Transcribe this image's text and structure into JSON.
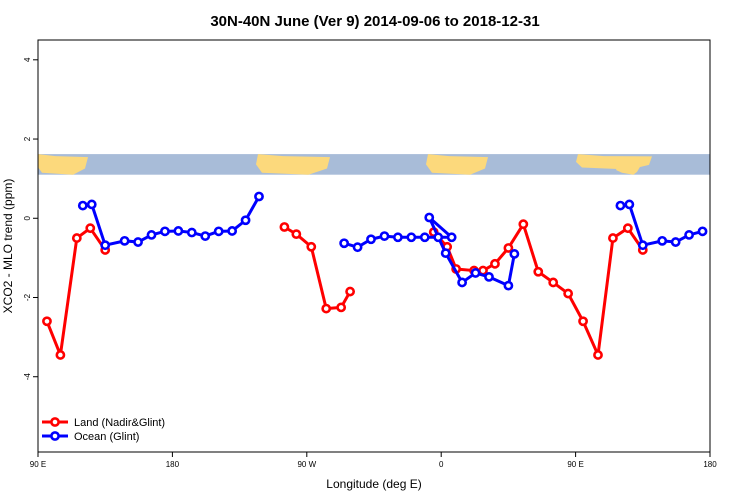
{
  "chart_data": {
    "type": "line",
    "title": "30N-40N June (Ver 9)   2014-09-06 to 2018-12-31",
    "xlabel": "Longitude (deg E)",
    "ylabel": "XCO2 - MLO trend (ppm)",
    "xlim": [
      90,
      540
    ],
    "ylim": [
      -5.9,
      4.5
    ],
    "x_ticks": [
      90,
      180,
      270,
      360,
      450,
      540
    ],
    "x_tick_labels": [
      "90 E",
      "180",
      "90 W",
      "0",
      "90 E",
      "180"
    ],
    "y_ticks": [
      -4,
      -2,
      0,
      2,
      4
    ],
    "y_tick_labels": [
      "-4",
      "-2",
      "0",
      "2",
      "4"
    ],
    "grid": false,
    "legend_position": "bottom-left",
    "map_strip": {
      "ymin": 1.1,
      "ymax": 1.62,
      "ocean_color": "#a8bcd8",
      "land_color": "#fcd97c"
    },
    "series": [
      {
        "name": "Land (Nadir&Glint)",
        "color": "#ff0000",
        "segments": [
          [
            [
              96,
              -2.6
            ],
            [
              105,
              -3.45
            ],
            [
              116,
              -0.5
            ],
            [
              125,
              -0.25
            ],
            [
              135,
              -0.8
            ]
          ],
          [
            [
              255,
              -0.22
            ],
            [
              263,
              -0.4
            ],
            [
              273,
              -0.72
            ],
            [
              283,
              -2.28
            ],
            [
              293,
              -2.25
            ],
            [
              299,
              -1.85
            ]
          ],
          [
            [
              355,
              -0.35
            ],
            [
              364,
              -0.72
            ],
            [
              370,
              -1.28
            ],
            [
              382,
              -1.32
            ],
            [
              388,
              -1.32
            ],
            [
              396,
              -1.15
            ],
            [
              405,
              -0.75
            ],
            [
              415,
              -0.15
            ],
            [
              425,
              -1.35
            ],
            [
              435,
              -1.62
            ],
            [
              445,
              -1.9
            ],
            [
              455,
              -2.6
            ],
            [
              465,
              -3.45
            ],
            [
              475,
              -0.5
            ],
            [
              485,
              -0.25
            ],
            [
              495,
              -0.8
            ]
          ]
        ]
      },
      {
        "name": "Ocean (Glint)",
        "color": "#0000ff",
        "segments": [
          [
            [
              120,
              0.32
            ],
            [
              126,
              0.35
            ],
            [
              135,
              -0.68
            ],
            [
              148,
              -0.57
            ],
            [
              157,
              -0.6
            ],
            [
              166,
              -0.42
            ],
            [
              175,
              -0.33
            ],
            [
              184,
              -0.32
            ],
            [
              193,
              -0.36
            ],
            [
              202,
              -0.45
            ],
            [
              211,
              -0.33
            ],
            [
              220,
              -0.32
            ],
            [
              229,
              -0.05
            ],
            [
              238,
              0.55
            ]
          ],
          [
            [
              295,
              -0.63
            ],
            [
              304,
              -0.73
            ],
            [
              313,
              -0.53
            ],
            [
              322,
              -0.45
            ],
            [
              331,
              -0.48
            ],
            [
              340,
              -0.48
            ],
            [
              349,
              -0.48
            ],
            [
              358,
              -0.48
            ],
            [
              367,
              -0.48
            ],
            [
              352,
              0.02
            ],
            [
              363,
              -0.88
            ],
            [
              374,
              -1.62
            ],
            [
              383,
              -1.38
            ],
            [
              392,
              -1.48
            ],
            [
              405,
              -1.7
            ],
            [
              409,
              -0.9
            ]
          ],
          [
            [
              480,
              0.32
            ],
            [
              486,
              0.35
            ],
            [
              495,
              -0.68
            ],
            [
              508,
              -0.57
            ],
            [
              517,
              -0.6
            ],
            [
              526,
              -0.42
            ],
            [
              535,
              -0.33
            ]
          ]
        ]
      }
    ]
  }
}
